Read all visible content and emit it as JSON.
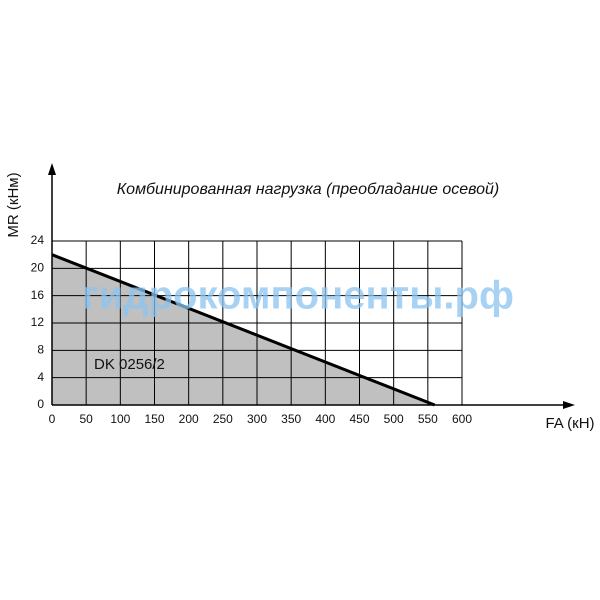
{
  "chart_data": {
    "type": "line",
    "title": "Комбинированная нагрузка (преобладание осевой)",
    "x_label": "FA (кН)",
    "y_label": "MR (кНм)",
    "annotation": "DK 0256/2",
    "watermark": "гидрокомпоненты.рф",
    "x": [
      0,
      560
    ],
    "series": [
      {
        "name": "DK 0256/2",
        "color": "#000000",
        "values": [
          22,
          0
        ]
      }
    ],
    "fill": "#c0c0c0",
    "xlim": [
      0,
      600
    ],
    "xticks": [
      0,
      50,
      100,
      150,
      200,
      250,
      300,
      350,
      400,
      450,
      500,
      550,
      600
    ],
    "ylim": [
      0,
      24
    ],
    "yticks": [
      0,
      4,
      8,
      12,
      16,
      20,
      24
    ],
    "grid": true
  }
}
